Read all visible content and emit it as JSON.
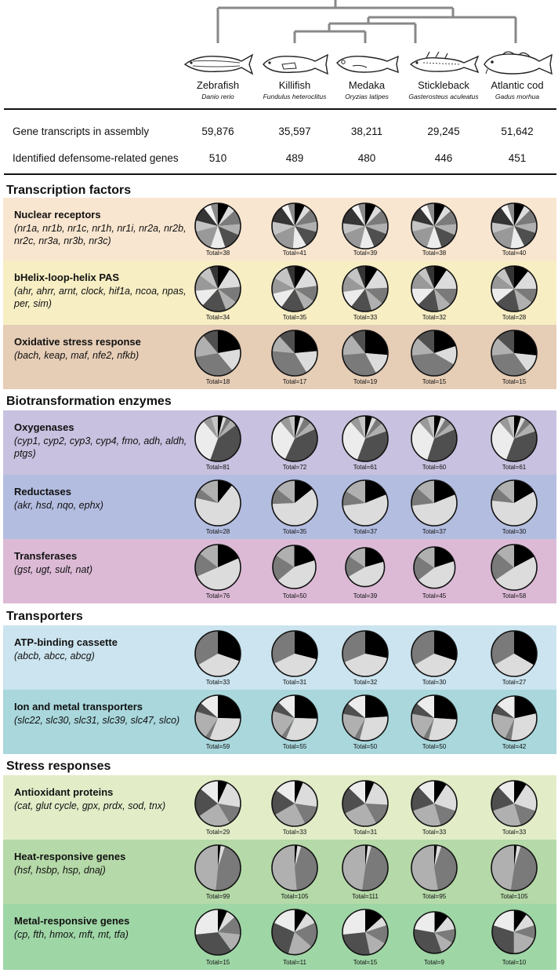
{
  "species": [
    {
      "name": "Zebrafish",
      "latin": "Danio rerio"
    },
    {
      "name": "Killifish",
      "latin": "Fundulus heteroclitus"
    },
    {
      "name": "Medaka",
      "latin": "Oryzias latipes"
    },
    {
      "name": "Stickleback",
      "latin": "Gasterosteus aculeatus"
    },
    {
      "name": "Atlantic cod",
      "latin": "Gadus morhua"
    }
  ],
  "stats": [
    {
      "label": "Gene transcripts in assembly",
      "values": [
        "59,876",
        "35,597",
        "38,211",
        "29,245",
        "51,642"
      ]
    },
    {
      "label": "Identified defensome-related genes",
      "values": [
        "510",
        "489",
        "480",
        "446",
        "451"
      ]
    }
  ],
  "sections": [
    {
      "title": "Transcription factors",
      "categories": [
        {
          "title": "Nuclear receptors",
          "genes": "(nr1a, nr1b, nr1c, nr1h, nr1i, nr2a, nr2b, nr2c, nr3a, nr3b, nr3c)",
          "color": "#f9e6d0",
          "totals": [
            "Total=38",
            "Total=41",
            "Total=39",
            "Total=38",
            "Total=40"
          ]
        },
        {
          "title": "bHelix-loop-helix PAS",
          "genes": "(ahr, ahrr, arnt, clock, hif1a, ncoa, npas, per, sim)",
          "color": "#f7eec4",
          "totals": [
            "Total=34",
            "Total=35",
            "Total=33",
            "Total=32",
            "Total=28"
          ]
        },
        {
          "title": "Oxidative stress response",
          "genes": "(bach, keap, maf, nfe2, nfkb)",
          "color": "#e6cdb6",
          "totals": [
            "Total=18",
            "Total=17",
            "Total=19",
            "Total=15",
            "Total=15"
          ]
        }
      ]
    },
    {
      "title": "Biotransformation enzymes",
      "categories": [
        {
          "title": "Oxygenases",
          "genes": "(cyp1, cyp2, cyp3, cyp4, fmo, adh, aldh, ptgs)",
          "color": "#c8c1df",
          "totals": [
            "Total=81",
            "Total=72",
            "Total=61",
            "Total=60",
            "Total=61"
          ]
        },
        {
          "title": "Reductases",
          "genes": "(akr, hsd, nqo, ephx)",
          "color": "#b3bde0",
          "totals": [
            "Total=28",
            "Total=35",
            "Total=37",
            "Total=37",
            "Total=30"
          ]
        },
        {
          "title": "Transferases",
          "genes": "(gst, ugt, sult, nat)",
          "color": "#dcbad6",
          "totals": [
            "Total=76",
            "Total=50",
            "Total=39",
            "Total=45",
            "Total=58"
          ]
        }
      ]
    },
    {
      "title": "Transporters",
      "categories": [
        {
          "title": "ATP-binding cassette",
          "genes": "(abcb, abcc, abcg)",
          "color": "#cbe4ef",
          "totals": [
            "Total=33",
            "Total=31",
            "Total=32",
            "Total=30",
            "Total=27"
          ]
        },
        {
          "title": "Ion and metal transporters",
          "genes": "(slc22, slc30, slc31, slc39, slc47, slco)",
          "color": "#a9d7dc",
          "totals": [
            "Total=59",
            "Total=55",
            "Total=50",
            "Total=50",
            "Total=42"
          ]
        }
      ]
    },
    {
      "title": "Stress responses",
      "categories": [
        {
          "title": "Antioxidant proteins",
          "genes": "(cat, glut cycle, gpx, prdx, sod, tnx)",
          "color": "#e2edc8",
          "totals": [
            "Total=29",
            "Total=33",
            "Total=31",
            "Total=33",
            "Total=33"
          ]
        },
        {
          "title": "Heat-responsive genes",
          "genes": "(hsf, hsbp, hsp, dnaj)",
          "color": "#b5d9a8",
          "totals": [
            "Total=99",
            "Total=105",
            "Total=111",
            "Total=95",
            "Total=105"
          ]
        },
        {
          "title": "Metal-responsive genes",
          "genes": "(cp, fth, hmox, mft, mt, tfa)",
          "color": "#9fd6a6",
          "totals": [
            "Total=15",
            "Total=11",
            "Total=15",
            "Total=9",
            "Total=10"
          ]
        }
      ]
    }
  ],
  "chart_data": {
    "type": "pie",
    "species": [
      "Zebrafish",
      "Killifish",
      "Medaka",
      "Stickleback",
      "Atlantic cod"
    ],
    "categories": [
      {
        "name": "Nuclear receptors",
        "totals": [
          38,
          41,
          39,
          38,
          40
        ],
        "slices": [
          [
            3,
            2,
            4,
            3,
            5,
            4,
            6,
            3,
            4,
            2,
            2
          ],
          [
            3,
            2,
            4,
            3,
            5,
            4,
            7,
            4,
            5,
            2,
            2
          ],
          [
            3,
            2,
            4,
            3,
            5,
            4,
            6,
            3,
            5,
            2,
            2
          ],
          [
            3,
            2,
            4,
            3,
            5,
            4,
            6,
            3,
            4,
            2,
            2
          ],
          [
            3,
            2,
            4,
            3,
            5,
            4,
            7,
            3,
            5,
            2,
            2
          ]
        ]
      },
      {
        "name": "bHelix-loop-helix PAS",
        "totals": [
          34,
          35,
          33,
          32,
          28
        ],
        "slices": [
          [
            3,
            5,
            4,
            3,
            6,
            4,
            4,
            3,
            2
          ],
          [
            3,
            5,
            4,
            3,
            6,
            4,
            4,
            4,
            2
          ],
          [
            3,
            5,
            4,
            3,
            5,
            4,
            4,
            3,
            2
          ],
          [
            3,
            5,
            4,
            3,
            5,
            4,
            4,
            2,
            2
          ],
          [
            3,
            4,
            3,
            3,
            5,
            3,
            3,
            2,
            2
          ]
        ]
      },
      {
        "name": "Oxidative stress response",
        "totals": [
          18,
          17,
          19,
          15,
          15
        ],
        "slices": [
          [
            4,
            3,
            6,
            3,
            2
          ],
          [
            4,
            3,
            6,
            2,
            2
          ],
          [
            5,
            3,
            6,
            3,
            2
          ],
          [
            3,
            2,
            6,
            2,
            2
          ],
          [
            4,
            2,
            5,
            2,
            2
          ]
        ]
      },
      {
        "name": "Oxygenases",
        "totals": [
          81,
          72,
          61,
          60,
          61
        ],
        "slices": [
          [
            3,
            2,
            3,
            4,
            33,
            27,
            5,
            4
          ],
          [
            3,
            2,
            4,
            4,
            28,
            23,
            5,
            3
          ],
          [
            3,
            2,
            3,
            4,
            22,
            20,
            4,
            3
          ],
          [
            3,
            2,
            3,
            3,
            22,
            20,
            4,
            3
          ],
          [
            3,
            2,
            3,
            4,
            22,
            20,
            4,
            3
          ]
        ]
      },
      {
        "name": "Reductases",
        "totals": [
          28,
          35,
          37,
          37,
          30
        ],
        "slices": [
          [
            3,
            19,
            2,
            4
          ],
          [
            5,
            21,
            4,
            5
          ],
          [
            7,
            20,
            4,
            6
          ],
          [
            7,
            20,
            5,
            5
          ],
          [
            5,
            18,
            3,
            4
          ]
        ]
      },
      {
        "name": "Transferases",
        "totals": [
          76,
          50,
          39,
          45,
          58
        ],
        "slices": [
          [
            14,
            38,
            13,
            11
          ],
          [
            10,
            22,
            10,
            8
          ],
          [
            8,
            18,
            7,
            6
          ],
          [
            9,
            20,
            9,
            7
          ],
          [
            10,
            28,
            12,
            8
          ]
        ]
      },
      {
        "name": "ATP-binding cassette",
        "totals": [
          33,
          31,
          32,
          30,
          27
        ],
        "slices": [
          [
            10,
            12,
            11
          ],
          [
            9,
            12,
            10
          ],
          [
            9,
            13,
            10
          ],
          [
            9,
            11,
            10
          ],
          [
            9,
            9,
            9
          ]
        ]
      },
      {
        "name": "Ion and metal transporters",
        "totals": [
          59,
          55,
          50,
          50,
          42
        ],
        "slices": [
          [
            15,
            18,
            2,
            12,
            4,
            8
          ],
          [
            14,
            17,
            2,
            11,
            4,
            7
          ],
          [
            12,
            15,
            2,
            10,
            4,
            7
          ],
          [
            13,
            14,
            2,
            10,
            4,
            7
          ],
          [
            9,
            13,
            2,
            9,
            3,
            6
          ]
        ]
      },
      {
        "name": "Antioxidant proteins",
        "totals": [
          29,
          33,
          31,
          33,
          33
        ],
        "slices": [
          [
            2,
            6,
            4,
            7,
            6,
            4
          ],
          [
            2,
            7,
            5,
            8,
            6,
            5
          ],
          [
            2,
            6,
            5,
            8,
            6,
            4
          ],
          [
            3,
            7,
            5,
            8,
            6,
            4
          ],
          [
            3,
            7,
            5,
            8,
            6,
            4
          ]
        ]
      },
      {
        "name": "Heat-responsive genes",
        "totals": [
          99,
          105,
          111,
          95,
          105
        ],
        "slices": [
          [
            2,
            3,
            46,
            48
          ],
          [
            2,
            3,
            46,
            54
          ],
          [
            2,
            3,
            53,
            53
          ],
          [
            2,
            3,
            40,
            50
          ],
          [
            2,
            3,
            50,
            50
          ]
        ]
      },
      {
        "name": "Metal-responsive genes",
        "totals": [
          15,
          11,
          15,
          9,
          10
        ],
        "slices": [
          [
            1,
            1,
            2,
            2,
            5,
            4
          ],
          [
            1,
            1,
            2,
            2,
            3,
            2
          ],
          [
            2,
            1,
            2,
            2,
            4,
            4
          ],
          [
            1,
            1,
            1,
            1,
            3,
            2
          ],
          [
            1,
            1,
            1,
            2,
            3,
            2
          ]
        ]
      }
    ]
  }
}
